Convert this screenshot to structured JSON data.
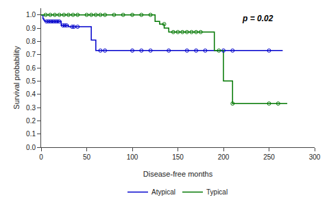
{
  "chart_data": {
    "type": "step",
    "title": "",
    "xlabel": "Disease-free months",
    "ylabel": "Survival probability",
    "annotation": "p = 0.02",
    "xlim": [
      0,
      300
    ],
    "ylim": [
      0,
      1.05
    ],
    "xticks": [
      0,
      50,
      100,
      150,
      200,
      250,
      300
    ],
    "yticks": [
      {
        "value": 0,
        "label": "0.0"
      },
      0.1,
      0.2,
      0.3,
      0.4,
      0.5,
      0.6,
      0.7,
      0.8,
      0.9,
      {
        "value": 1.0,
        "label": "1.0"
      }
    ],
    "grid": false,
    "legend": "bottom",
    "background_color": "#ffffff",
    "series": [
      {
        "name": "Atypical",
        "color": "#0000cc",
        "marker": "open_circle",
        "x": [
          0,
          2,
          3,
          4,
          6,
          8,
          10,
          12,
          14,
          16,
          18,
          20,
          22,
          24,
          26,
          28,
          30,
          32,
          34,
          36,
          40,
          45,
          55,
          60,
          65,
          70,
          80,
          100,
          110,
          120,
          130,
          140,
          150,
          160,
          170,
          180,
          190,
          200,
          210,
          220,
          250,
          265
        ],
        "values": [
          1.0,
          0.97,
          0.96,
          0.95,
          0.95,
          0.95,
          0.95,
          0.95,
          0.95,
          0.95,
          0.95,
          0.95,
          0.92,
          0.92,
          0.92,
          0.92,
          0.91,
          0.91,
          0.91,
          0.91,
          0.91,
          0.91,
          0.81,
          0.73,
          0.73,
          0.73,
          0.73,
          0.73,
          0.73,
          0.73,
          0.73,
          0.73,
          0.73,
          0.73,
          0.73,
          0.73,
          0.73,
          0.73,
          0.73,
          0.73,
          0.73,
          0.73
        ],
        "censor_x": [
          6,
          8,
          10,
          12,
          14,
          16,
          18,
          20,
          24,
          26,
          28,
          34,
          36,
          40,
          65,
          70,
          100,
          110,
          120,
          140,
          160,
          170,
          180,
          200,
          210,
          250
        ],
        "censor_values": [
          0.95,
          0.95,
          0.95,
          0.95,
          0.95,
          0.95,
          0.95,
          0.95,
          0.92,
          0.92,
          0.92,
          0.91,
          0.91,
          0.91,
          0.73,
          0.73,
          0.73,
          0.73,
          0.73,
          0.73,
          0.73,
          0.73,
          0.73,
          0.73,
          0.73,
          0.73
        ]
      },
      {
        "name": "Typical",
        "color": "#007700",
        "marker": "open_circle",
        "x": [
          0,
          5,
          10,
          15,
          20,
          25,
          30,
          35,
          40,
          50,
          55,
          60,
          65,
          70,
          80,
          90,
          100,
          110,
          120,
          125,
          130,
          135,
          140,
          145,
          150,
          155,
          160,
          165,
          170,
          175,
          180,
          190,
          195,
          200,
          205,
          210,
          215,
          250,
          260,
          270
        ],
        "values": [
          1.0,
          1.0,
          1.0,
          1.0,
          1.0,
          1.0,
          1.0,
          1.0,
          1.0,
          1.0,
          1.0,
          1.0,
          1.0,
          1.0,
          1.0,
          1.0,
          1.0,
          1.0,
          1.0,
          0.95,
          0.93,
          0.9,
          0.87,
          0.87,
          0.87,
          0.87,
          0.87,
          0.87,
          0.87,
          0.87,
          0.87,
          0.73,
          0.73,
          0.5,
          0.5,
          0.33,
          0.33,
          0.33,
          0.33,
          0.33
        ],
        "censor_x": [
          5,
          10,
          15,
          20,
          25,
          30,
          35,
          40,
          50,
          55,
          60,
          65,
          70,
          80,
          90,
          100,
          110,
          120,
          135,
          145,
          150,
          155,
          160,
          165,
          170,
          175,
          195,
          210,
          250,
          260
        ],
        "censor_values": [
          1.0,
          1.0,
          1.0,
          1.0,
          1.0,
          1.0,
          1.0,
          1.0,
          1.0,
          1.0,
          1.0,
          1.0,
          1.0,
          1.0,
          1.0,
          1.0,
          1.0,
          1.0,
          0.93,
          0.87,
          0.87,
          0.87,
          0.87,
          0.87,
          0.87,
          0.87,
          0.73,
          0.33,
          0.33,
          0.33
        ]
      }
    ]
  }
}
